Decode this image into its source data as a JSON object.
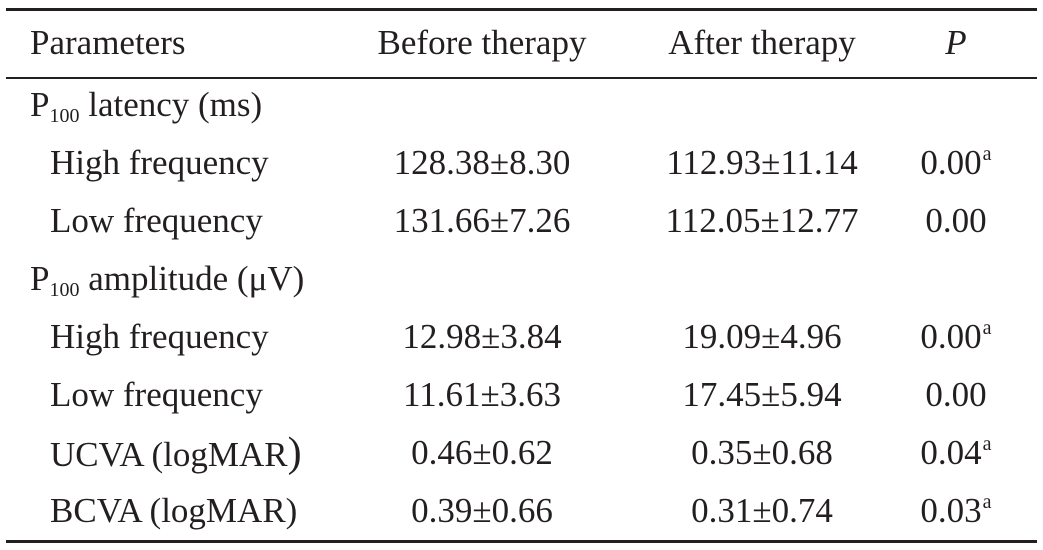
{
  "header": {
    "parameters": "Parameters",
    "before": "Before therapy",
    "after": "After therapy",
    "p": "P"
  },
  "sections": {
    "latency": {
      "label_prefix": "P",
      "label_sub": "100",
      "label_suffix": " latency (ms)",
      "high": {
        "label": "High frequency",
        "before": "128.38±8.30",
        "after": "112.93±11.14",
        "p": "0.00",
        "sup": "a"
      },
      "low": {
        "label": "Low frequency",
        "before": "131.66±7.26",
        "after": "112.05±12.77",
        "p": "0.00",
        "sup": ""
      }
    },
    "amplitude": {
      "label_prefix": "P",
      "label_sub": "100",
      "label_suffix": " amplitude (μV)",
      "high": {
        "label": "High frequency",
        "before": "12.98±3.84",
        "after": "19.09±4.96",
        "p": "0.00",
        "sup": "a"
      },
      "low": {
        "label": "Low frequency",
        "before": "11.61±3.63",
        "after": "17.45±5.94",
        "p": "0.00",
        "sup": ""
      }
    }
  },
  "ucva": {
    "label": "UCVA (logMAR",
    "label_close": ")",
    "before": "0.46±0.62",
    "after": "0.35±0.68",
    "p": "0.04",
    "sup": "a"
  },
  "bcva": {
    "label": "BCVA (logMAR)",
    "before": "0.39±0.66",
    "after": "0.31±0.74",
    "p": "0.03",
    "sup": "a"
  }
}
